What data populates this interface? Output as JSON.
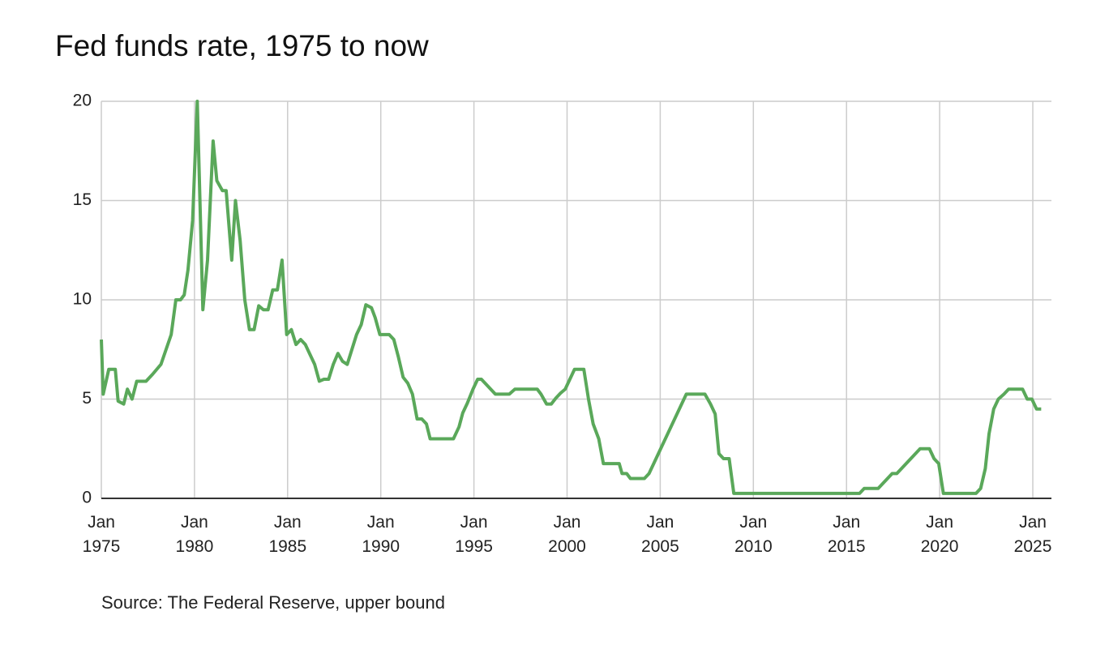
{
  "chart_data": {
    "type": "line",
    "title": "Fed funds rate, 1975 to now",
    "source": "Source: The Federal Reserve, upper bound",
    "x": [
      1975.0,
      1975.1,
      1975.4,
      1975.75,
      1975.9,
      1976.2,
      1976.4,
      1976.65,
      1976.9,
      1977.4,
      1977.75,
      1978.2,
      1978.75,
      1979.0,
      1979.25,
      1979.45,
      1979.65,
      1979.9,
      1980.15,
      1980.45,
      1980.7,
      1981.0,
      1981.2,
      1981.5,
      1981.7,
      1982.0,
      1982.2,
      1982.45,
      1982.7,
      1982.95,
      1983.2,
      1983.45,
      1983.7,
      1983.95,
      1984.2,
      1984.45,
      1984.7,
      1984.95,
      1985.2,
      1985.45,
      1985.7,
      1985.95,
      1986.2,
      1986.45,
      1986.7,
      1986.95,
      1987.2,
      1987.45,
      1987.7,
      1987.95,
      1988.2,
      1988.45,
      1988.7,
      1988.95,
      1989.2,
      1989.5,
      1989.7,
      1989.95,
      1990.2,
      1990.45,
      1990.7,
      1990.95,
      1991.2,
      1991.45,
      1991.7,
      1991.95,
      1992.2,
      1992.45,
      1992.65,
      1993.9,
      1994.2,
      1994.4,
      1994.65,
      1994.95,
      1995.2,
      1995.4,
      1995.65,
      1995.9,
      1996.15,
      1996.9,
      1997.2,
      1998.4,
      1998.6,
      1998.9,
      1999.15,
      1999.4,
      1999.65,
      1999.9,
      2000.15,
      2000.4,
      2000.9,
      2001.15,
      2001.4,
      2001.7,
      2001.95,
      2002.8,
      2002.95,
      2003.2,
      2003.4,
      2004.15,
      2004.4,
      2006.4,
      2007.4,
      2007.7,
      2007.95,
      2008.15,
      2008.4,
      2008.7,
      2008.95,
      2015.7,
      2015.95,
      2016.7,
      2017.45,
      2017.7,
      2018.95,
      2019.45,
      2019.7,
      2019.95,
      2020.2,
      2021.95,
      2022.2,
      2022.45,
      2022.65,
      2022.9,
      2023.15,
      2023.45,
      2023.7,
      2024.45,
      2024.7,
      2024.95,
      2025.2,
      2025.45
    ],
    "series": [
      {
        "name": "Fed funds rate",
        "color": "#5aa85a",
        "values": [
          8.0,
          5.25,
          6.5,
          6.5,
          4.9,
          4.75,
          5.5,
          5.0,
          5.9,
          5.9,
          6.25,
          6.75,
          8.25,
          10.0,
          10.0,
          10.25,
          11.5,
          14.0,
          20.0,
          9.5,
          12.0,
          18.0,
          16.0,
          15.5,
          15.5,
          12.0,
          15.0,
          13.0,
          10.0,
          8.5,
          8.5,
          9.7,
          9.5,
          9.5,
          10.5,
          10.5,
          12.0,
          8.25,
          8.5,
          7.75,
          8.0,
          7.75,
          7.25,
          6.75,
          5.9,
          6.0,
          6.0,
          6.75,
          7.3,
          6.9,
          6.75,
          7.5,
          8.25,
          8.75,
          9.75,
          9.6,
          9.1,
          8.25,
          8.25,
          8.25,
          8.0,
          7.1,
          6.1,
          5.8,
          5.25,
          4.0,
          4.0,
          3.75,
          3.0,
          3.0,
          3.6,
          4.3,
          4.8,
          5.5,
          6.0,
          6.0,
          5.75,
          5.5,
          5.25,
          5.25,
          5.5,
          5.5,
          5.25,
          4.75,
          4.75,
          5.05,
          5.3,
          5.5,
          6.0,
          6.5,
          6.5,
          5.0,
          3.75,
          3.0,
          1.75,
          1.75,
          1.25,
          1.25,
          1.0,
          1.0,
          1.25,
          5.25,
          5.25,
          4.75,
          4.25,
          2.25,
          2.0,
          2.0,
          0.25,
          0.25,
          0.5,
          0.5,
          1.25,
          1.25,
          2.5,
          2.5,
          2.0,
          1.75,
          0.25,
          0.25,
          0.5,
          1.5,
          3.25,
          4.5,
          5.0,
          5.25,
          5.5,
          5.5,
          5.0,
          5.0,
          4.5,
          4.5
        ]
      }
    ],
    "xlim": [
      1975,
      2026
    ],
    "xticks": [
      {
        "value": 1975,
        "label": "Jan 1975"
      },
      {
        "value": 1980,
        "label": "Jan 1980"
      },
      {
        "value": 1985,
        "label": "Jan 1985"
      },
      {
        "value": 1990,
        "label": "Jan 1990"
      },
      {
        "value": 1995,
        "label": "Jan 1995"
      },
      {
        "value": 2000,
        "label": "Jan 2000"
      },
      {
        "value": 2005,
        "label": "Jan 2005"
      },
      {
        "value": 2010,
        "label": "Jan 2010"
      },
      {
        "value": 2015,
        "label": "Jan 2015"
      },
      {
        "value": 2020,
        "label": "Jan 2020"
      },
      {
        "value": 2025,
        "label": "Jan 2025"
      }
    ],
    "ylim": [
      0,
      20
    ],
    "yticks": [
      0,
      5,
      10,
      15,
      20
    ],
    "grid": true
  }
}
